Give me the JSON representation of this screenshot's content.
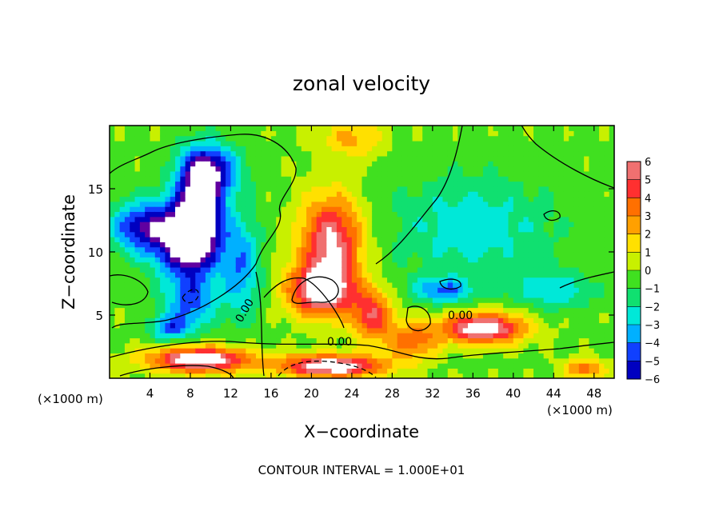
{
  "chart_data": {
    "type": "heatmap",
    "title": "zonal velocity",
    "xlabel": "X−coordinate",
    "ylabel": "Z−coordinate",
    "x_units_left": "(×1000 m)",
    "x_units_right": "(×1000 m)",
    "xlim": [
      0,
      50
    ],
    "ylim": [
      0,
      20
    ],
    "xticks": [
      "4",
      "8",
      "12",
      "16",
      "20",
      "24",
      "28",
      "32",
      "36",
      "40",
      "44",
      "48"
    ],
    "xtick_values": [
      4,
      8,
      12,
      16,
      20,
      24,
      28,
      32,
      36,
      40,
      44,
      48
    ],
    "yticks": [
      "5",
      "10",
      "15"
    ],
    "ytick_values": [
      5,
      10,
      15
    ],
    "colorbar": {
      "labels": [
        "6",
        "5",
        "4",
        "3",
        "2",
        "1",
        "0",
        "−1",
        "−2",
        "−3",
        "−4",
        "−5",
        "−6"
      ],
      "values": [
        6,
        5,
        4,
        3,
        2,
        1,
        0,
        -1,
        -2,
        -3,
        -4,
        -5,
        -6
      ],
      "colors": [
        "#f07070",
        "#ff3030",
        "#ff7000",
        "#ffa000",
        "#ffe000",
        "#c8f000",
        "#40e020",
        "#10e070",
        "#00e8d8",
        "#00b0ff",
        "#1040ff",
        "#0000c0",
        "#6000a0"
      ]
    },
    "contour_labels": [
      "0.00",
      "0.00",
      "0.00"
    ],
    "footer": "CONTOUR INTERVAL = 1.000E+01",
    "features": [
      {
        "x": 9,
        "z": 13,
        "v": -6,
        "sx": 2.2,
        "sz": 4
      },
      {
        "x": 7,
        "z": 11,
        "v": -5,
        "sx": 3,
        "sz": 3
      },
      {
        "x": 3,
        "z": 12,
        "v": -4,
        "sx": 3,
        "sz": 2
      },
      {
        "x": 10,
        "z": 16.5,
        "v": -4,
        "sx": 3,
        "sz": 2
      },
      {
        "x": 13,
        "z": 9,
        "v": -3,
        "sx": 2,
        "sz": 4
      },
      {
        "x": 8,
        "z": 6,
        "v": -3,
        "sx": 2.5,
        "sz": 2
      },
      {
        "x": 22,
        "z": 11,
        "v": 5,
        "sx": 3,
        "sz": 3.5
      },
      {
        "x": 21,
        "z": 7,
        "v": 6,
        "sx": 3.2,
        "sz": 2
      },
      {
        "x": 26,
        "z": 5,
        "v": 4,
        "sx": 2,
        "sz": 2
      },
      {
        "x": 30,
        "z": 3,
        "v": 3,
        "sx": 2.5,
        "sz": 1.5
      },
      {
        "x": 37,
        "z": 4,
        "v": 6,
        "sx": 4,
        "sz": 1.2
      },
      {
        "x": 9,
        "z": 1.5,
        "v": 6,
        "sx": 5,
        "sz": 1
      },
      {
        "x": 22,
        "z": 1,
        "v": 6,
        "sx": 5,
        "sz": 0.9
      },
      {
        "x": 47,
        "z": 0.8,
        "v": 3,
        "sx": 2,
        "sz": 0.8
      },
      {
        "x": 36,
        "z": 12,
        "v": -2,
        "sx": 8,
        "sz": 4
      },
      {
        "x": 33,
        "z": 7,
        "v": -3,
        "sx": 3,
        "sz": 1
      },
      {
        "x": 44,
        "z": 7,
        "v": -2,
        "sx": 4,
        "sz": 1.5
      },
      {
        "x": 24,
        "z": 19,
        "v": 2,
        "sx": 3,
        "sz": 1.5
      },
      {
        "x": 6,
        "z": 4,
        "v": -3,
        "sx": 2,
        "sz": 1
      }
    ]
  }
}
